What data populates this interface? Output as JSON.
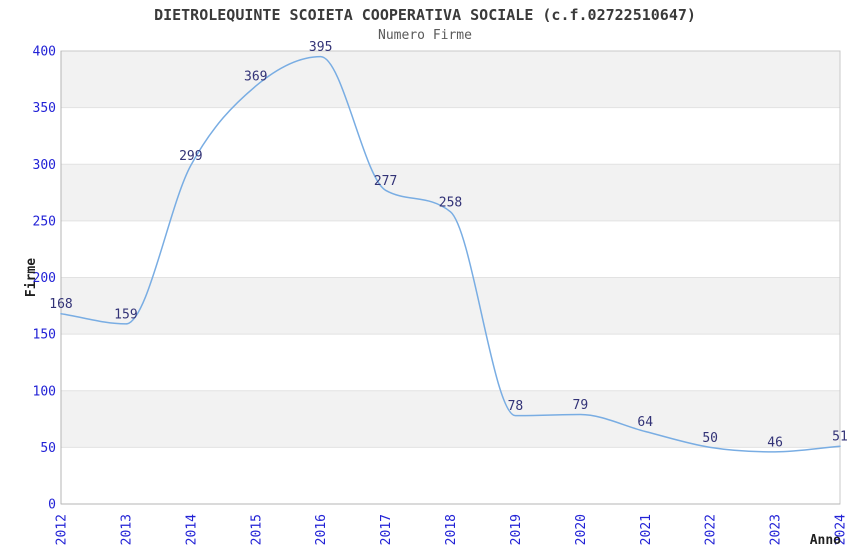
{
  "chart_data": {
    "type": "line",
    "title": "DIETROLEQUINTE SCOIETA COOPERATIVA SOCIALE (c.f.02722510647)",
    "subtitle": "Numero Firme",
    "series_name": "Numero Firme",
    "xlabel": "Anno",
    "ylabel": "Firme",
    "categories": [
      "2012",
      "2013",
      "2014",
      "2015",
      "2016",
      "2017",
      "2018",
      "2019",
      "2020",
      "2021",
      "2022",
      "2023",
      "2024"
    ],
    "values": [
      168,
      159,
      299,
      369,
      395,
      277,
      258,
      78,
      79,
      64,
      50,
      46,
      51
    ],
    "point_labels": [
      "168",
      "159",
      "299",
      "369",
      "395",
      "277",
      "258",
      "78",
      "79",
      "64",
      "50",
      "46",
      "51"
    ],
    "ylim": [
      0,
      400
    ],
    "ytick_step": 50,
    "ytick_labels": [
      "0",
      "50",
      "100",
      "150",
      "200",
      "250",
      "300",
      "350",
      "400"
    ],
    "grid": "horizontal",
    "banded_background": true,
    "legend": "none",
    "line_interpolation": "monotone"
  },
  "colors": {
    "line": "#79ade3",
    "point_label": "#333377",
    "tick_label": "#2222d6",
    "band_shaded": "#f2f2f2",
    "band_plain": "#ffffff",
    "gridline": "#e2e2e2",
    "plot_border": "#c9c9c9",
    "axis_line": "#b5b5b5",
    "title": "#3a3a3a",
    "subtitle": "#5a5a5a",
    "axis_title": "#1f1f1f",
    "background": "#ffffff"
  }
}
